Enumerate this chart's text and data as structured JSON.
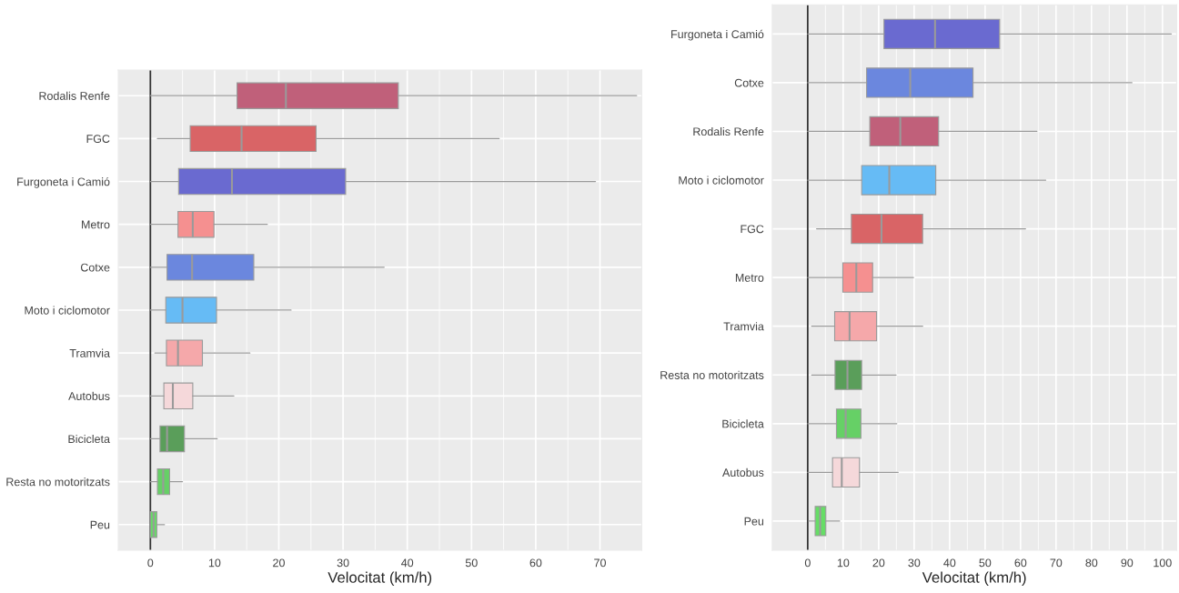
{
  "chart_data": [
    {
      "type": "box",
      "xlabel": "Velocitat (km/h)",
      "orientation": "horizontal",
      "grid": true,
      "categories": [
        "Rodalis Renfe",
        "FGC",
        "Furgoneta i Camió",
        "Metro",
        "Cotxe",
        "Moto i ciclomotor",
        "Tramvia",
        "Autobus",
        "Bicicleta",
        "Resta no motoritzats",
        "Peu"
      ],
      "colors": [
        "#c0607a",
        "#d96466",
        "#6a6ad0",
        "#f59090",
        "#6b87de",
        "#66bbf5",
        "#f5a8aa",
        "#f5d8da",
        "#5a9e5a",
        "#66d066",
        "#66dd66"
      ],
      "boxes": [
        {
          "low": 0,
          "q1": 13.5,
          "median": 21.1,
          "q3": 38.6,
          "high": 75.7
        },
        {
          "low": 1.1,
          "q1": 6.2,
          "median": 14.2,
          "q3": 25.8,
          "high": 54.3
        },
        {
          "low": 0,
          "q1": 4.4,
          "median": 12.7,
          "q3": 30.4,
          "high": 69.3
        },
        {
          "low": 0,
          "q1": 4.3,
          "median": 6.6,
          "q3": 9.9,
          "high": 18.2
        },
        {
          "low": 0,
          "q1": 2.6,
          "median": 6.5,
          "q3": 16.1,
          "high": 36.4
        },
        {
          "low": 0,
          "q1": 2.4,
          "median": 5.0,
          "q3": 10.3,
          "high": 21.9
        },
        {
          "low": 0.7,
          "q1": 2.5,
          "median": 4.3,
          "q3": 8.1,
          "high": 15.5
        },
        {
          "low": 0,
          "q1": 2.1,
          "median": 3.5,
          "q3": 6.6,
          "high": 13.0
        },
        {
          "low": 0,
          "q1": 1.5,
          "median": 2.6,
          "q3": 5.3,
          "high": 10.4
        },
        {
          "low": 0,
          "q1": 1.1,
          "median": 2.0,
          "q3": 3.0,
          "high": 5.0
        },
        {
          "low": 0,
          "q1": 0.0,
          "median": 0.5,
          "q3": 1.0,
          "high": 2.2
        }
      ],
      "xlim": [
        -5,
        76.5
      ],
      "xticks": [
        0,
        10,
        20,
        30,
        40,
        50,
        60,
        70
      ],
      "ref_lines": [
        {
          "axis": "x",
          "value": 0,
          "color": "#333333"
        }
      ]
    },
    {
      "type": "box",
      "xlabel": "Velocitat (km/h)",
      "orientation": "horizontal",
      "grid": true,
      "categories": [
        "Furgoneta i Camió",
        "Cotxe",
        "Rodalis Renfe",
        "Moto i ciclomotor",
        "FGC",
        "Metro",
        "Tramvia",
        "Resta no motoritzats",
        "Bicicleta",
        "Autobus",
        "Peu"
      ],
      "colors": [
        "#6a6ad0",
        "#6b87de",
        "#c0607a",
        "#66bbf5",
        "#d96466",
        "#f59090",
        "#f5a8aa",
        "#5a9e5a",
        "#66d066",
        "#f5d8da",
        "#66dd66"
      ],
      "boxes": [
        {
          "low": 0,
          "q1": 21.5,
          "median": 35.9,
          "q3": 54.1,
          "high": 102.5
        },
        {
          "low": 0,
          "q1": 16.6,
          "median": 28.9,
          "q3": 46.6,
          "high": 91.4
        },
        {
          "low": 0,
          "q1": 17.5,
          "median": 26.1,
          "q3": 36.9,
          "high": 64.6
        },
        {
          "low": 0,
          "q1": 15.2,
          "median": 23.0,
          "q3": 36.1,
          "high": 67.1
        },
        {
          "low": 2.5,
          "q1": 12.3,
          "median": 20.8,
          "q3": 32.4,
          "high": 61.4
        },
        {
          "low": 0,
          "q1": 9.9,
          "median": 13.7,
          "q3": 18.3,
          "high": 29.8
        },
        {
          "low": 1.1,
          "q1": 7.6,
          "median": 11.8,
          "q3": 19.4,
          "high": 32.4
        },
        {
          "low": 1.1,
          "q1": 7.7,
          "median": 11.2,
          "q3": 15.2,
          "high": 24.9
        },
        {
          "low": 0,
          "q1": 8.1,
          "median": 10.7,
          "q3": 15.0,
          "high": 25.1
        },
        {
          "low": 0,
          "q1": 7.0,
          "median": 9.6,
          "q3": 14.6,
          "high": 25.5
        },
        {
          "low": 0.3,
          "q1": 2.1,
          "median": 3.5,
          "q3": 5.1,
          "high": 9.0
        }
      ],
      "xlim": [
        -10,
        104
      ],
      "xticks": [
        0,
        10,
        20,
        30,
        40,
        50,
        60,
        70,
        80,
        90,
        100
      ],
      "ref_lines": [
        {
          "axis": "x",
          "value": 0,
          "color": "#333333"
        }
      ]
    }
  ]
}
